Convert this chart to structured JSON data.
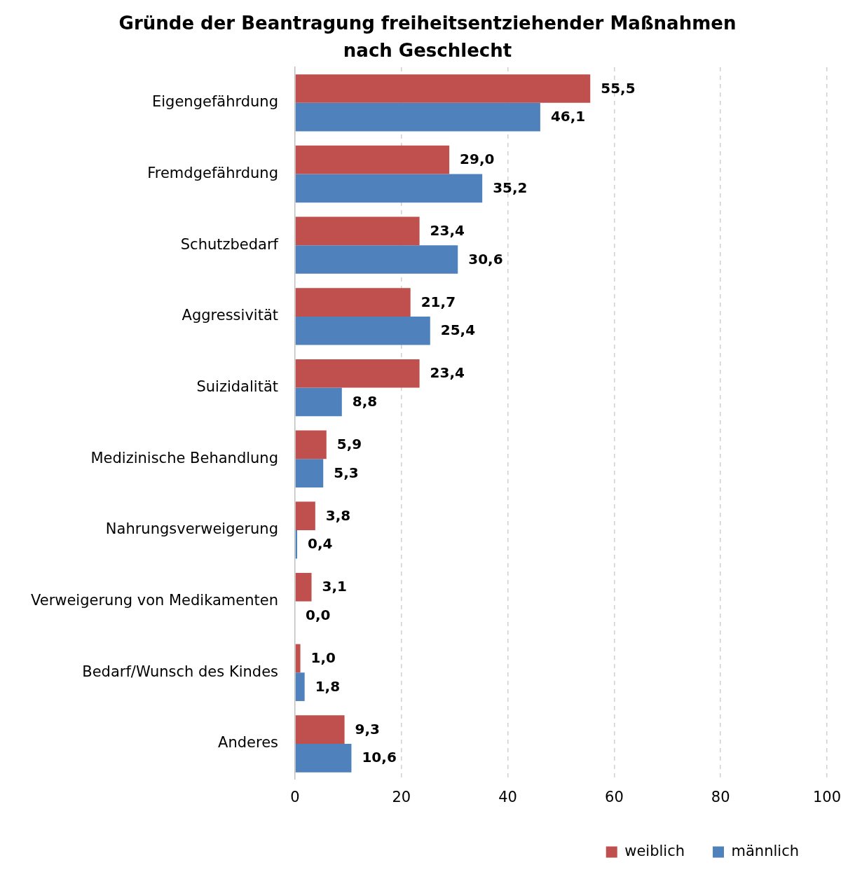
{
  "chart_data": {
    "type": "bar",
    "orientation": "horizontal",
    "title": "Gründe der Beantragung freiheitsentziehender Maßnahmen nach Geschlecht",
    "categories": [
      "Eigengefährdung",
      "Fremdgefährdung",
      "Schutzbedarf",
      "Aggressivität",
      "Suizidalität",
      "Medizinische Behandlung",
      "Nahrungsverweigerung",
      "Verweigerung von Medikamenten",
      "Bedarf/Wunsch des Kindes",
      "Anderes"
    ],
    "series": [
      {
        "name": "weiblich",
        "color": "#c0504d",
        "values": [
          55.5,
          29.0,
          23.4,
          21.7,
          23.4,
          5.9,
          3.8,
          3.1,
          1.0,
          9.3
        ]
      },
      {
        "name": "männlich",
        "color": "#4f81bd",
        "values": [
          46.1,
          35.2,
          30.6,
          25.4,
          8.8,
          5.3,
          0.4,
          0.0,
          1.8,
          10.6
        ]
      }
    ],
    "value_labels": [
      [
        "55,5",
        "29,0",
        "23,4",
        "21,7",
        "23,4",
        "5,9",
        "3,8",
        "3,1",
        "1,0",
        "9,3"
      ],
      [
        "46,1",
        "35,2",
        "30,6",
        "25,4",
        "8,8",
        "5,3",
        "0,4",
        "0,0",
        "1,8",
        "10,6"
      ]
    ],
    "xlim": [
      0,
      100
    ],
    "xticks": [
      0,
      20,
      40,
      60,
      80,
      100
    ],
    "grid": "x",
    "legend": "bottom"
  }
}
